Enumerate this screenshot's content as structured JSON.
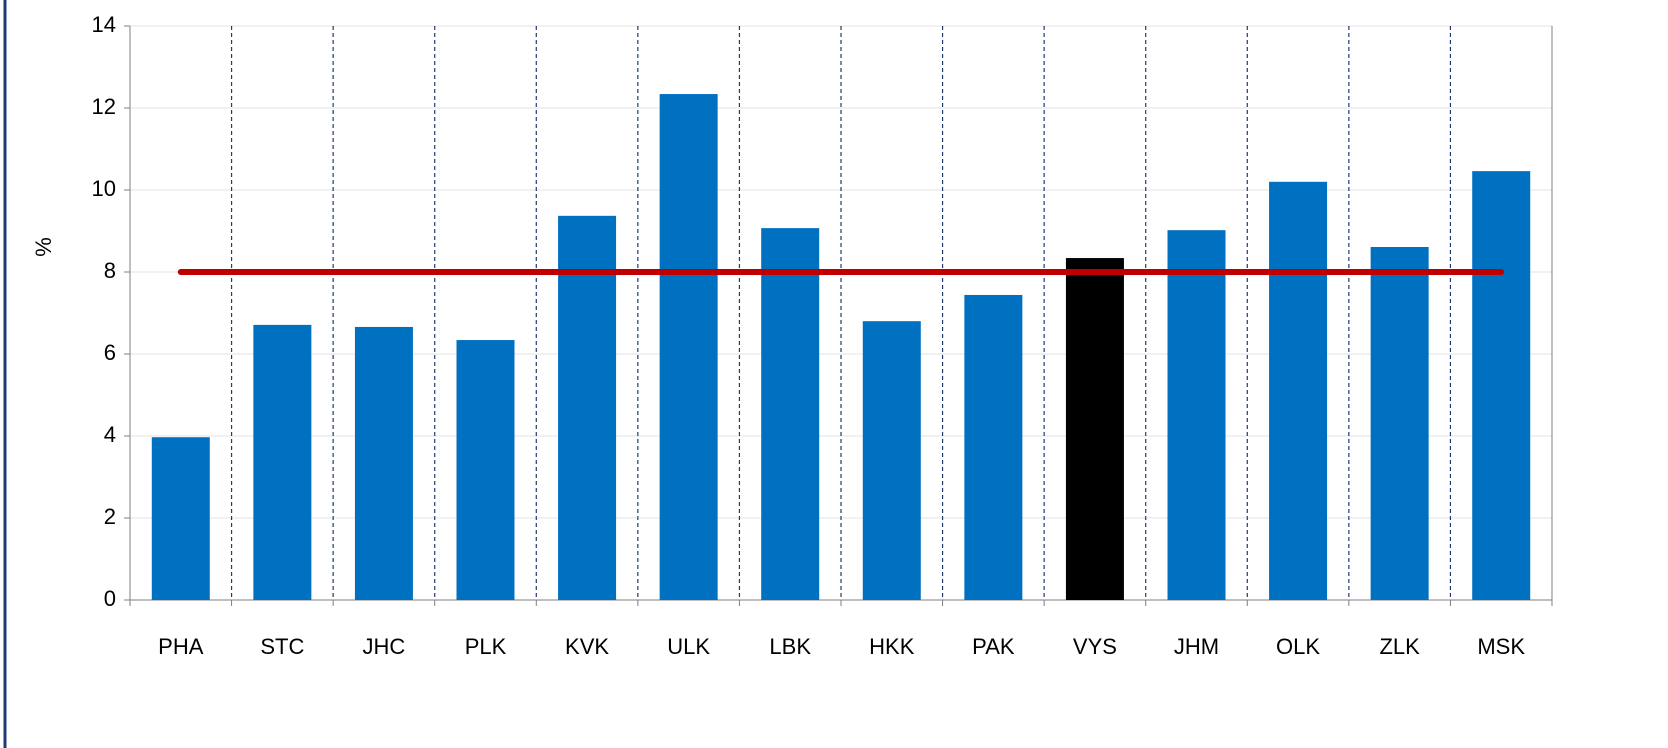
{
  "chart_data": {
    "type": "bar",
    "y_label": "%",
    "categories": [
      "PHA",
      "STC",
      "JHC",
      "PLK",
      "KVK",
      "ULK",
      "LBK",
      "HKK",
      "PAK",
      "VYS",
      "JHM",
      "OLK",
      "ZLK",
      "MSK"
    ],
    "values": [
      3.97,
      6.71,
      6.66,
      6.34,
      9.37,
      12.34,
      9.07,
      6.8,
      7.44,
      8.34,
      9.02,
      10.2,
      8.61,
      10.46
    ],
    "colors": [
      "#0070c0",
      "#0070c0",
      "#0070c0",
      "#0070c0",
      "#0070c0",
      "#0070c0",
      "#0070c0",
      "#0070c0",
      "#0070c0",
      "#000000",
      "#0070c0",
      "#0070c0",
      "#0070c0",
      "#0070c0"
    ],
    "reference_line": {
      "value": 8,
      "color": "#c00000"
    },
    "ylim": [
      0,
      14
    ],
    "yticks": [
      0,
      2,
      4,
      6,
      8,
      10,
      12,
      14
    ],
    "grid": true
  }
}
